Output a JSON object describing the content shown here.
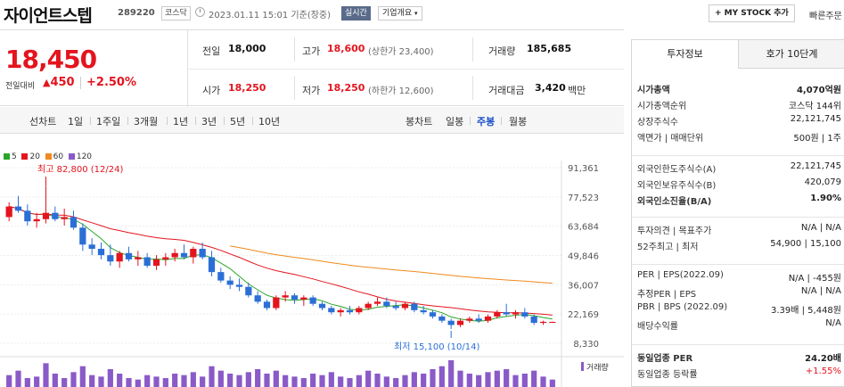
{
  "stock": {
    "name": "자이언트스텝",
    "code": "289220",
    "market": "코스닥",
    "datetime": "2023.01.11 15:01 기준(장중)",
    "live_label": "실시간",
    "corp_info": "기업개요",
    "mystock": "+ MY STOCK 추가",
    "quick_order": "빠른주문"
  },
  "price": {
    "current": "18,450",
    "change_label": "전일대비",
    "change_amount": "450",
    "change_pct": "+2.50%"
  },
  "quote": {
    "prev_label": "전일",
    "prev": "18,000",
    "high_label": "고가",
    "high": "18,600",
    "upper_limit": "(상한가 23,400)",
    "volume_label": "거래량",
    "volume": "185,685",
    "open_label": "시가",
    "open": "18,250",
    "low_label": "저가",
    "low": "18,250",
    "lower_limit": "(하한가 12,600)",
    "amount_label": "거래대금",
    "amount": "3,420",
    "amount_unit": "백만"
  },
  "periods": {
    "line_label": "선차트",
    "line": [
      "1일",
      "1주일",
      "3개월",
      "1년",
      "3년",
      "5년",
      "10년"
    ],
    "candle_label": "봉차트",
    "candle": [
      "일봉",
      "주봉",
      "월봉"
    ],
    "selected": "주봉"
  },
  "chart_data": {
    "type": "candlestick",
    "legend": [
      {
        "name": "5",
        "color": "#2aa52a"
      },
      {
        "name": "20",
        "color": "#e4141e"
      },
      {
        "name": "60",
        "color": "#f08a1e"
      },
      {
        "name": "120",
        "color": "#8a5ac8"
      }
    ],
    "y_ticks": [
      "91,361",
      "77,523",
      "63,684",
      "49,846",
      "36,007",
      "22,169",
      "8,330"
    ],
    "ylim": [
      8330,
      91361
    ],
    "high_annotation": "최고 82,800 (12/24)",
    "low_annotation": "최저 15,100 (10/14)",
    "volume_label": "거래량",
    "candles": [
      [
        68000,
        75000,
        66000,
        73000
      ],
      [
        73000,
        78000,
        70000,
        71000
      ],
      [
        71000,
        74000,
        64000,
        66000
      ],
      [
        66000,
        70000,
        63000,
        67000
      ],
      [
        67000,
        82800,
        65000,
        70000
      ],
      [
        70000,
        73000,
        66000,
        67000
      ],
      [
        67000,
        72000,
        64000,
        68000
      ],
      [
        68000,
        71000,
        62000,
        63000
      ],
      [
        63000,
        65000,
        52000,
        55000
      ],
      [
        55000,
        58000,
        50000,
        53000
      ],
      [
        53000,
        56000,
        48000,
        50000
      ],
      [
        50000,
        55000,
        45000,
        47000
      ],
      [
        47000,
        52000,
        44000,
        51000
      ],
      [
        51000,
        54000,
        47000,
        48000
      ],
      [
        48000,
        52000,
        45000,
        49000
      ],
      [
        49000,
        51000,
        44000,
        45000
      ],
      [
        45000,
        50000,
        43000,
        48000
      ],
      [
        48000,
        51000,
        45000,
        49000
      ],
      [
        49000,
        53000,
        47000,
        51000
      ],
      [
        51000,
        55000,
        48000,
        49000
      ],
      [
        49000,
        54000,
        46000,
        53000
      ],
      [
        53000,
        56000,
        48000,
        49000
      ],
      [
        49000,
        52000,
        40000,
        42000
      ],
      [
        42000,
        44000,
        37000,
        38000
      ],
      [
        38000,
        40000,
        34000,
        36000
      ],
      [
        36000,
        39000,
        33000,
        35000
      ],
      [
        35000,
        37000,
        30000,
        31000
      ],
      [
        31000,
        33000,
        27000,
        28000
      ],
      [
        28000,
        29000,
        24000,
        25000
      ],
      [
        25000,
        31000,
        24000,
        30000
      ],
      [
        30000,
        33000,
        28000,
        31000
      ],
      [
        31000,
        32000,
        27000,
        29000
      ],
      [
        29000,
        31000,
        26000,
        30000
      ],
      [
        30000,
        31000,
        26000,
        27000
      ],
      [
        27000,
        28000,
        24000,
        25000
      ],
      [
        25000,
        26000,
        22000,
        23000
      ],
      [
        23000,
        25000,
        21000,
        24000
      ],
      [
        24000,
        26000,
        22000,
        23000
      ],
      [
        23000,
        26000,
        22000,
        25000
      ],
      [
        25000,
        28000,
        24000,
        27000
      ],
      [
        27000,
        30000,
        26000,
        28000
      ],
      [
        28000,
        30000,
        25000,
        26000
      ],
      [
        26000,
        28000,
        24000,
        25000
      ],
      [
        25000,
        28000,
        24000,
        27000
      ],
      [
        27000,
        28000,
        23000,
        24000
      ],
      [
        24000,
        26000,
        22000,
        23000
      ],
      [
        23000,
        24000,
        20000,
        21000
      ],
      [
        21000,
        22000,
        18000,
        19000
      ],
      [
        19000,
        20000,
        15100,
        17000
      ],
      [
        17000,
        20000,
        16000,
        19000
      ],
      [
        19000,
        21000,
        18000,
        20000
      ],
      [
        20000,
        22000,
        18000,
        19000
      ],
      [
        19000,
        22000,
        18000,
        21000
      ],
      [
        21000,
        24000,
        20000,
        23000
      ],
      [
        23000,
        27000,
        21000,
        22000
      ],
      [
        22000,
        24000,
        20000,
        23000
      ],
      [
        23000,
        25000,
        20000,
        21000
      ],
      [
        21000,
        22000,
        17000,
        18000
      ],
      [
        18000,
        19000,
        17000,
        18500
      ],
      [
        18000,
        18600,
        18250,
        18450
      ]
    ],
    "volumes": [
      40,
      55,
      30,
      35,
      80,
      45,
      30,
      50,
      70,
      40,
      35,
      60,
      45,
      30,
      25,
      40,
      35,
      30,
      45,
      40,
      50,
      35,
      70,
      55,
      45,
      40,
      50,
      60,
      45,
      55,
      40,
      35,
      30,
      45,
      40,
      50,
      35,
      30,
      40,
      55,
      45,
      35,
      30,
      40,
      50,
      45,
      60,
      70,
      90,
      55,
      45,
      40,
      50,
      55,
      60,
      40,
      45,
      55,
      35,
      25
    ]
  },
  "panel": {
    "tab_invest": "투자정보",
    "tab_orderbook": "호가 10단계",
    "rows1": [
      {
        "l": "시가총액",
        "r": "4,070억원",
        "bold": true
      },
      {
        "l": "시가총액순위",
        "r": "코스닥 144위"
      },
      {
        "l": "상장주식수",
        "r": "22,121,745"
      },
      {
        "l": "액면가 | 매매단위",
        "r": "500원 | 1주"
      }
    ],
    "rows2": [
      {
        "l": "외국인한도주식수(A)",
        "r": "22,121,745"
      },
      {
        "l": "외국인보유주식수(B)",
        "r": "420,079"
      },
      {
        "l": "외국인소진율(B/A)",
        "r": "1.90%",
        "bold": true
      }
    ],
    "rows3": [
      {
        "l": "투자의견 | 목표주가",
        "r": "N/A | N/A"
      },
      {
        "l": "52주최고 | 최저",
        "r": "54,900 | 15,100"
      }
    ],
    "rows4": [
      {
        "l": "PER | EPS(2022.09)",
        "r": "N/A | -455원"
      },
      {
        "l": "추정PER | EPS",
        "r": "N/A | N/A"
      },
      {
        "l": "PBR | BPS (2022.09)",
        "r": "3.39배 | 5,448원"
      },
      {
        "l": "배당수익률",
        "r": "N/A"
      }
    ],
    "rows5": [
      {
        "l": "동일업종 PER",
        "r": "24.20배",
        "bold": true
      },
      {
        "l": "동일업종 등락률",
        "r": "+1.55%",
        "red": true
      }
    ]
  }
}
